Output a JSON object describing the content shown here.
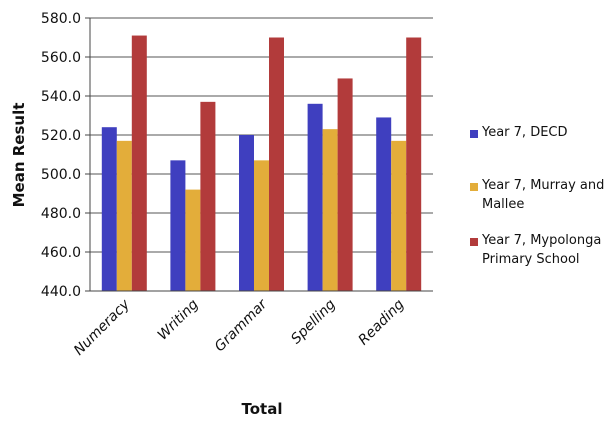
{
  "chart_data": {
    "type": "bar",
    "title": "",
    "xlabel": "Total",
    "ylabel": "Mean Result",
    "categories": [
      "Numeracy",
      "Writing",
      "Grammar",
      "Spelling",
      "Reading"
    ],
    "ylim": [
      440,
      580
    ],
    "yticks": [
      "440.0",
      "460.0",
      "480.0",
      "500.0",
      "520.0",
      "540.0",
      "560.0",
      "580.0"
    ],
    "grid": true,
    "legend_position": "right",
    "series": [
      {
        "name": "Year 7, DECD",
        "color": "#3f3fbf",
        "values": [
          524,
          507,
          520,
          536,
          529
        ]
      },
      {
        "name": "Year 7, Murray and Mallee",
        "color": "#e3ad3a",
        "values": [
          517,
          492,
          507,
          523,
          517
        ]
      },
      {
        "name": "Year 7, Mypolonga Primary School",
        "color": "#b23b3b",
        "values": [
          571,
          537,
          570,
          549,
          570
        ]
      }
    ]
  }
}
